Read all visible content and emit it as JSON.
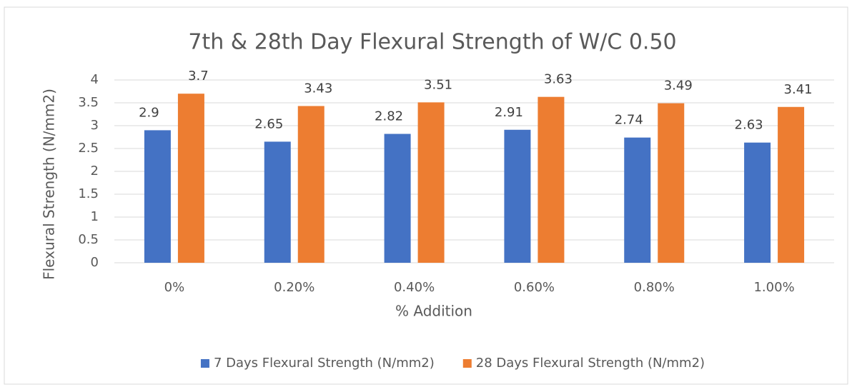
{
  "chart_data": {
    "type": "bar",
    "title": "7th & 28th Day Flexural Strength of W/C 0.50",
    "x_label": "% Addition",
    "y_label": "Flexural Strength (N/mm2)",
    "categories": [
      "0%",
      "0.20%",
      "0.40%",
      "0.60%",
      "0.80%",
      "1.00%"
    ],
    "series": [
      {
        "name": "7 Days Flexural Strength (N/mm2)",
        "color": "#4472c4",
        "values": [
          2.9,
          2.65,
          2.82,
          2.91,
          2.74,
          2.63
        ]
      },
      {
        "name": "28 Days Flexural Strength (N/mm2)",
        "color": "#ed7d31",
        "values": [
          3.7,
          3.43,
          3.51,
          3.63,
          3.49,
          3.41
        ]
      }
    ],
    "ylim": [
      0,
      4
    ],
    "yticks": [
      0,
      0.5,
      1,
      1.5,
      2,
      2.5,
      3,
      3.5,
      4
    ],
    "grid": true,
    "legend": "bottom"
  }
}
